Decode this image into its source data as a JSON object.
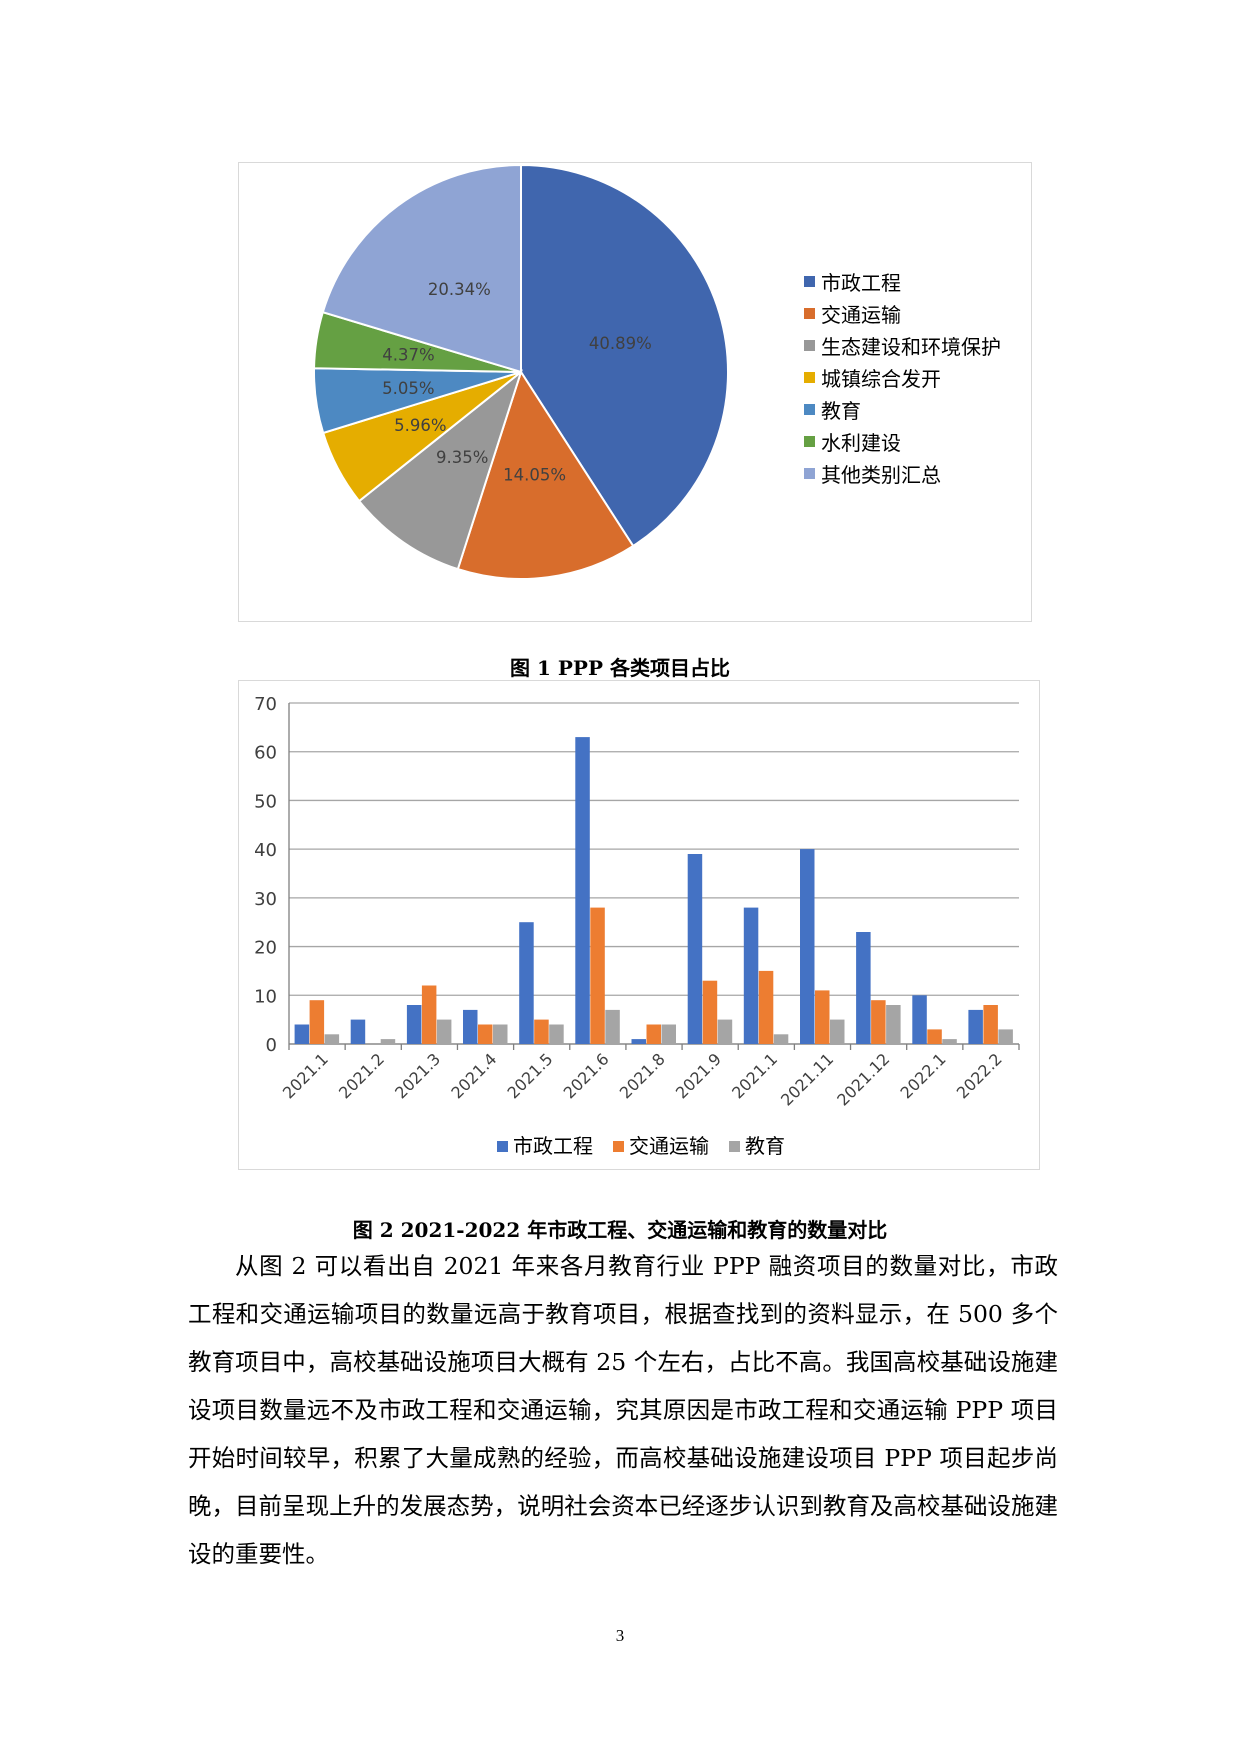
{
  "chart_data": [
    {
      "type": "pie",
      "title": "",
      "legend_position": "right",
      "slices": [
        {
          "name": "市政工程",
          "value": 40.89,
          "label": "40.89%",
          "color": "#4066ae"
        },
        {
          "name": "交通运输",
          "value": 14.05,
          "label": "14.05%",
          "color": "#d86d2c"
        },
        {
          "name": "生态建设和环境保护",
          "value": 9.35,
          "label": "9.35%",
          "color": "#989898"
        },
        {
          "name": "城镇综合发开",
          "value": 5.96,
          "label": "5.96%",
          "color": "#e5ad00"
        },
        {
          "name": "教育",
          "value": 5.05,
          "label": "5.05%",
          "color": "#4d89c2"
        },
        {
          "name": "水利建设",
          "value": 4.37,
          "label": "4.37%",
          "color": "#65a043"
        },
        {
          "name": "其他类别汇总",
          "value": 20.34,
          "label": "20.34%",
          "color": "#8fa4d4"
        }
      ]
    },
    {
      "type": "bar",
      "title": "",
      "legend_position": "bottom",
      "grid": true,
      "ylim": [
        0,
        70
      ],
      "yticks": [
        0,
        10,
        20,
        30,
        40,
        50,
        60,
        70
      ],
      "categories": [
        "2021.1",
        "2021.2",
        "2021.3",
        "2021.4",
        "2021.5",
        "2021.6",
        "2021.8",
        "2021.9",
        "2021.1",
        "2021.11",
        "2021.12",
        "2022.1",
        "2022.2"
      ],
      "series": [
        {
          "name": "市政工程",
          "color": "#4472c4",
          "values": [
            4,
            5,
            8,
            7,
            25,
            63,
            1,
            39,
            28,
            40,
            23,
            10,
            7
          ]
        },
        {
          "name": "交通运输",
          "color": "#ed7d31",
          "values": [
            9,
            0,
            12,
            4,
            5,
            28,
            4,
            13,
            15,
            11,
            9,
            3,
            8
          ]
        },
        {
          "name": "教育",
          "color": "#a5a5a5",
          "values": [
            2,
            1,
            5,
            4,
            4,
            7,
            4,
            5,
            2,
            5,
            8,
            1,
            3
          ]
        }
      ]
    }
  ],
  "captions": {
    "figure1": "图  1  PPP 各类项目占比",
    "figure2": "图  2    2021-2022 年市政工程、交通运输和教育的数量对比"
  },
  "body_paragraph": "从图 2 可以看出自 2021 年来各月教育行业 PPP 融资项目的数量对比，市政工程和交通运输项目的数量远高于教育项目，根据查找到的资料显示，在 500 多个教育项目中，高校基础设施项目大概有 25 个左右，占比不高。我国高校基础设施建设项目数量远不及市政工程和交通运输，究其原因是市政工程和交通运输 PPP 项目开始时间较早，积累了大量成熟的经验，而高校基础设施建设项目 PPP 项目起步尚晚，目前呈现上升的发展态势，说明社会资本已经逐步认识到教育及高校基础设施建设的重要性。",
  "page_number": "3"
}
